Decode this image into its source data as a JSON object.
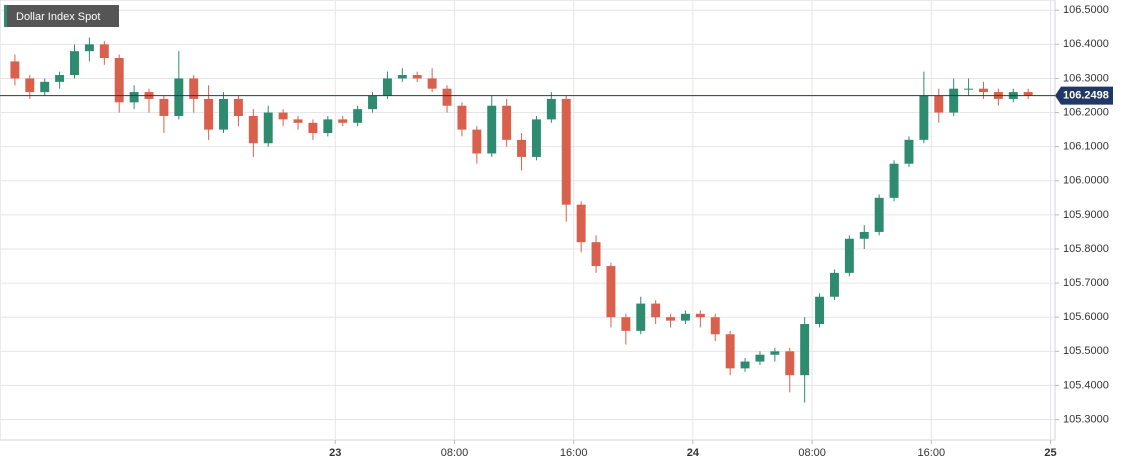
{
  "chart_data": {
    "type": "candlestick",
    "title": "Dollar Index Spot",
    "x": [
      -22,
      -21,
      -20,
      -19,
      -18,
      -17,
      -16,
      -15,
      -14,
      -13,
      -12,
      -11,
      -10,
      -9,
      -8,
      -7,
      -6,
      -5,
      -4,
      -3,
      -2,
      -1,
      0,
      1,
      2,
      3,
      4,
      5,
      6,
      7,
      8,
      9,
      10,
      11,
      12,
      13,
      14,
      15,
      16,
      17,
      18,
      19,
      20,
      21,
      22,
      23,
      24,
      25,
      26,
      27,
      28,
      29,
      30,
      31,
      32,
      33,
      34,
      35,
      36,
      37,
      38,
      39,
      40,
      41,
      42,
      43,
      44,
      45,
      46
    ],
    "open": [
      106.35,
      106.3,
      106.26,
      106.29,
      106.31,
      106.38,
      106.4,
      106.36,
      106.23,
      106.26,
      106.24,
      106.19,
      106.3,
      106.24,
      106.15,
      106.24,
      106.19,
      106.11,
      106.2,
      106.18,
      106.17,
      106.14,
      106.18,
      106.17,
      106.21,
      106.25,
      106.3,
      106.31,
      106.3,
      106.27,
      106.22,
      106.15,
      106.08,
      106.22,
      106.12,
      106.07,
      106.18,
      106.24,
      105.93,
      105.82,
      105.75,
      105.6,
      105.56,
      105.64,
      105.6,
      105.59,
      105.61,
      105.6,
      105.55,
      105.45,
      105.47,
      105.49,
      105.5,
      105.43,
      105.58,
      105.66,
      105.73,
      105.83,
      105.85,
      105.95,
      106.05,
      106.12,
      106.25,
      106.2,
      106.27,
      106.27,
      106.26,
      106.24,
      106.26
    ],
    "high": [
      106.37,
      106.31,
      106.3,
      106.32,
      106.4,
      106.42,
      106.41,
      106.37,
      106.28,
      106.27,
      106.25,
      106.38,
      106.31,
      106.28,
      106.26,
      106.25,
      106.21,
      106.22,
      106.21,
      106.19,
      106.18,
      106.19,
      106.19,
      106.22,
      106.26,
      106.32,
      106.33,
      106.32,
      106.33,
      106.28,
      106.23,
      106.16,
      106.25,
      106.24,
      106.14,
      106.19,
      106.26,
      106.25,
      105.94,
      105.84,
      105.76,
      105.61,
      105.66,
      105.65,
      105.61,
      105.62,
      105.62,
      105.61,
      105.56,
      105.48,
      105.5,
      105.51,
      105.51,
      105.6,
      105.67,
      105.74,
      105.84,
      105.87,
      105.96,
      106.06,
      106.13,
      106.32,
      106.27,
      106.3,
      106.3,
      106.29,
      106.27,
      106.27,
      106.27
    ],
    "low": [
      106.28,
      106.24,
      106.25,
      106.27,
      106.3,
      106.35,
      106.34,
      106.2,
      106.21,
      106.2,
      106.14,
      106.18,
      106.2,
      106.12,
      106.14,
      106.16,
      106.07,
      106.1,
      106.16,
      106.15,
      106.12,
      106.13,
      106.16,
      106.16,
      106.2,
      106.24,
      106.29,
      106.29,
      106.26,
      106.2,
      106.13,
      106.05,
      106.07,
      106.1,
      106.03,
      106.06,
      106.17,
      105.88,
      105.79,
      105.73,
      105.57,
      105.52,
      105.55,
      105.58,
      105.57,
      105.58,
      105.57,
      105.53,
      105.43,
      105.44,
      105.46,
      105.47,
      105.38,
      105.35,
      105.57,
      105.65,
      105.72,
      105.8,
      105.84,
      105.94,
      106.04,
      106.11,
      106.17,
      106.19,
      106.25,
      106.24,
      106.22,
      106.23,
      106.24
    ],
    "close": [
      106.3,
      106.26,
      106.29,
      106.31,
      106.38,
      106.4,
      106.36,
      106.23,
      106.26,
      106.24,
      106.19,
      106.3,
      106.24,
      106.15,
      106.24,
      106.19,
      106.11,
      106.2,
      106.18,
      106.17,
      106.14,
      106.18,
      106.17,
      106.21,
      106.25,
      106.3,
      106.31,
      106.3,
      106.27,
      106.22,
      106.15,
      106.08,
      106.22,
      106.12,
      106.07,
      106.18,
      106.24,
      105.93,
      105.82,
      105.75,
      105.6,
      105.56,
      105.64,
      105.6,
      105.59,
      105.61,
      105.6,
      105.55,
      105.45,
      105.47,
      105.49,
      105.5,
      105.43,
      105.58,
      105.66,
      105.73,
      105.83,
      105.85,
      105.95,
      106.05,
      106.12,
      106.25,
      106.2,
      106.27,
      106.27,
      106.26,
      106.24,
      106.26,
      106.2498
    ],
    "up_color": "#2e8b6f",
    "down_color": "#d9604c",
    "last_price": 106.2498,
    "last_price_color": "#1f3864",
    "xlim": [
      -22.5,
      48.3
    ],
    "ylim": [
      105.24,
      106.53
    ],
    "xticks": [
      {
        "value": 0,
        "label": "23"
      },
      {
        "value": 8,
        "label": "08:00"
      },
      {
        "value": 16,
        "label": "16:00"
      },
      {
        "value": 24,
        "label": "24"
      },
      {
        "value": 32,
        "label": "08:00"
      },
      {
        "value": 40,
        "label": "16:00"
      },
      {
        "value": 48,
        "label": "25"
      }
    ],
    "yticks": [
      {
        "value": 105.3,
        "label": "105.3000"
      },
      {
        "value": 105.4,
        "label": "105.4000"
      },
      {
        "value": 105.5,
        "label": "105.5000"
      },
      {
        "value": 105.6,
        "label": "105.6000"
      },
      {
        "value": 105.7,
        "label": "105.7000"
      },
      {
        "value": 105.8,
        "label": "105.8000"
      },
      {
        "value": 105.9,
        "label": "105.9000"
      },
      {
        "value": 106.0,
        "label": "106.0000"
      },
      {
        "value": 106.1,
        "label": "106.1000"
      },
      {
        "value": 106.2,
        "label": "106.2000"
      },
      {
        "value": 106.3,
        "label": "106.3000"
      },
      {
        "value": 106.4,
        "label": "106.4000"
      },
      {
        "value": 106.5,
        "label": "106.5000"
      }
    ],
    "grid": true
  }
}
